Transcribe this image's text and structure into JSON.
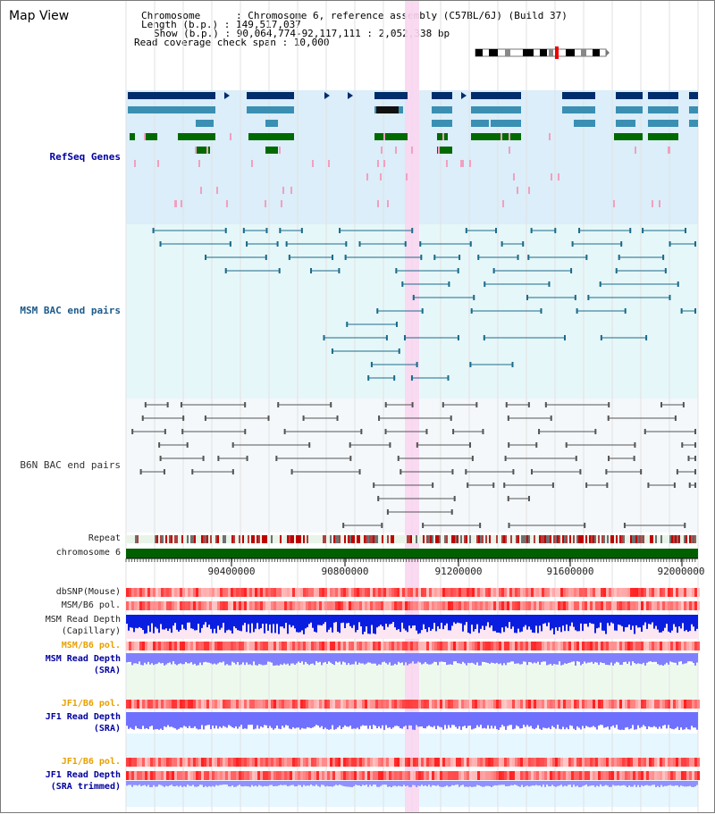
{
  "title": "Map View",
  "info": {
    "chromosome_label": "Chromosome      : Chromosome 6, reference assembly (C57BL/6J) (Build 37)",
    "length_label": "Length (b.p.) : 149,517,037",
    "show_label": "Show (b.p.) : 90,064,774-92,117,111 : 2,052,338 bp",
    "coverage_label": "Read coverage check span : 10,000"
  },
  "tracks": {
    "refseq": "RefSeq Genes",
    "msm_bac": "MSM BAC end pairs",
    "b6n_bac": "B6N BAC end pairs"
  },
  "ruler": {
    "repeat": "Repeat",
    "chromosome": "chromosome 6",
    "ticks": [
      "90400000",
      "90800000",
      "91200000",
      "91600000",
      "92000000"
    ]
  },
  "lower_tracks": {
    "dbsnp": "dbSNP(Mouse)",
    "msm_b6_pol_1": "MSM/B6 pol.",
    "msm_read_depth_cap_1": "MSM Read Depth",
    "msm_read_depth_cap_2": "(Capillary)",
    "msm_b6_pol_2": "MSM/B6 pol.",
    "msm_read_depth_sra_1": "MSM Read Depth",
    "msm_read_depth_sra_2": "(SRA)",
    "jf1_b6_pol_1": "JF1/B6 pol.",
    "jf1_read_depth_1": "JF1 Read Depth",
    "jf1_read_depth_2": "(SRA)",
    "jf1_b6_pol_2": "JF1/B6 pol.",
    "jf1_read_depth_trim_1": "JF1 Read Depth",
    "jf1_read_depth_trim_2": "(SRA trimmed)"
  },
  "colors": {
    "refseq_bg": "#dbeef9",
    "msm_bg": "#e6f7f9",
    "gene_dark": "#002d6b",
    "gene_mid": "#3a8fb3",
    "gene_green": "#006a00",
    "pink": "#f2a0c0",
    "highlight": "#f9d6f0",
    "chrom_bar": "#006000",
    "label_blue": "#0000a0",
    "label_orange": "#e8a000"
  }
}
